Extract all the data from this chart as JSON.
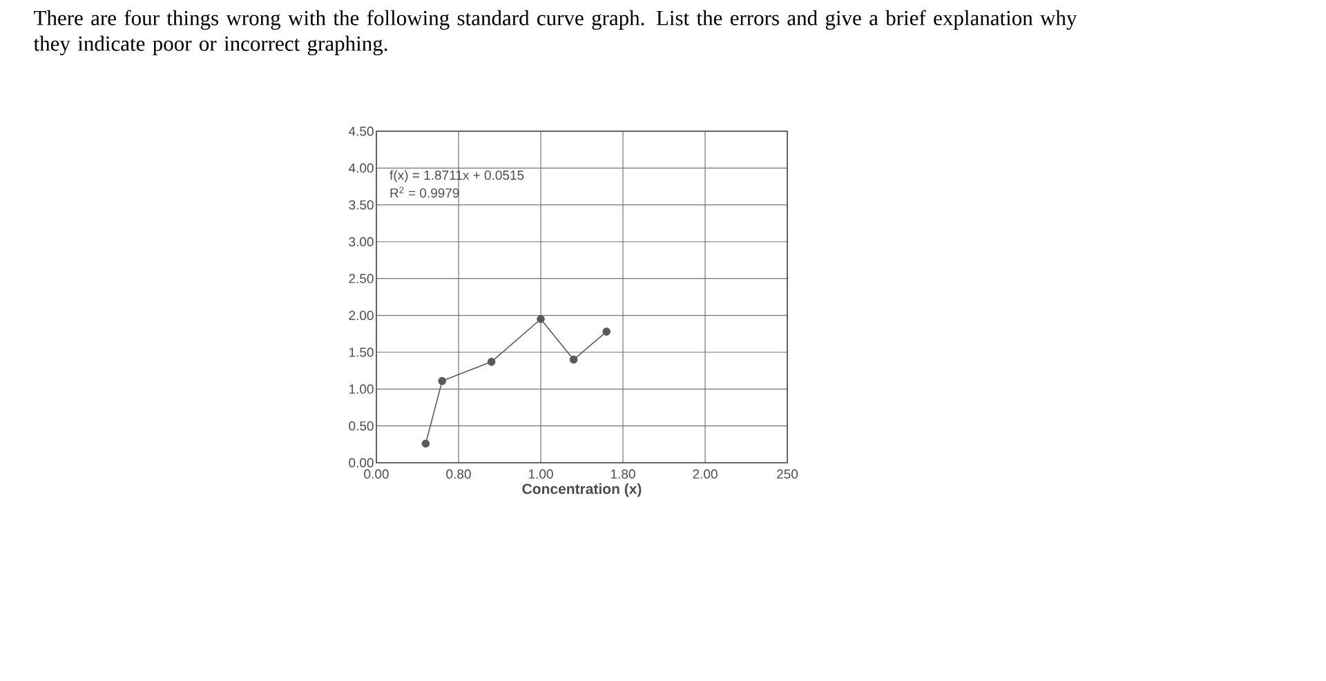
{
  "chart_data": {
    "type": "line",
    "title": "There are four things wrong with the following standard curve graph. List the errors and give a brief explanation why they indicate poor or incorrect graphing.",
    "xlabel": "Concentration (x)",
    "annotations": [
      "f(x) = 1.8711x + 0.0515",
      "R$^{2}$ = 0.9979"
    ],
    "series": [
      {
        "color": "#5a5a5a",
        "values": [
          null,
          null,
          null,
          0.26,
          1.11,
          null,
          null,
          1.37,
          null,
          null,
          1.95,
          null,
          1.4,
          null,
          1.78,
          null,
          null,
          null,
          null,
          null,
          null,
          null,
          null,
          null,
          null,
          null
        ]
      }
    ],
    "categories": [
      "0.00",
      null,
      null,
      null,
      null,
      "0.80",
      null,
      null,
      null,
      null,
      "1.00",
      null,
      null,
      null,
      null,
      "1.80",
      null,
      null,
      null,
      null,
      "2.00",
      null,
      null,
      null,
      null,
      "250"
    ],
    "ylim": [
      0,
      4.5
    ],
    "yticks": [
      {
        "value": 0,
        "label": "0.00"
      },
      {
        "value": 0.5,
        "label": "0.50"
      },
      {
        "value": 1,
        "label": "1.00"
      },
      {
        "value": 1.5,
        "label": "1.50"
      },
      {
        "value": 2,
        "label": "2.00"
      },
      {
        "value": 2.5,
        "label": "2.50"
      },
      {
        "value": 3,
        "label": "3.00"
      },
      {
        "value": 3.5,
        "label": "3.50"
      },
      {
        "value": 4,
        "label": "4.00"
      },
      {
        "value": 4.5,
        "label": "4.50"
      }
    ],
    "grid": true,
    "marker": "circle"
  }
}
